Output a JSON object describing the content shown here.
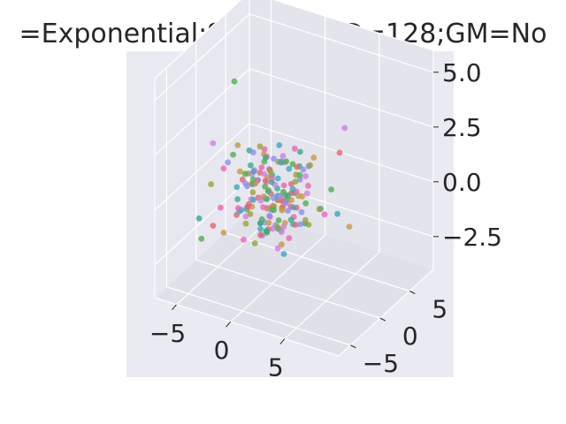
{
  "chart_data": {
    "type": "scatter",
    "projection": "3d",
    "title": "=Exponential;SD=128;ED=128;GM=No",
    "xlim": [
      -7,
      10
    ],
    "ylim": [
      -7,
      9
    ],
    "zlim": [
      -4,
      6
    ],
    "x_ticks": [
      "−5",
      "0",
      "5"
    ],
    "y_ticks": [
      "−5",
      "0",
      "5"
    ],
    "z_ticks": [
      "−2.5",
      "0.0",
      "2.5",
      "5.0"
    ],
    "grid": true,
    "legend": "none",
    "background": "#eaeaf2",
    "series": [
      {
        "color": "#e8646b",
        "points": [
          [
            -1.8,
            -0.6,
            -0.5
          ],
          [
            -0.5,
            -1.4,
            0.2
          ],
          [
            0.4,
            1.1,
            -0.7
          ],
          [
            -1.6,
            0.9,
            0.6
          ],
          [
            1.3,
            -0.5,
            0.1
          ],
          [
            -0.3,
            0.2,
            1.1
          ],
          [
            0.9,
            1.6,
            0.3
          ],
          [
            -1.2,
            -1.9,
            -0.2
          ],
          [
            0.1,
            -0.8,
            -1.3
          ],
          [
            1.9,
            0.7,
            -0.4
          ],
          [
            -0.8,
            1.3,
            -1.0
          ],
          [
            2.4,
            -1.1,
            0.8
          ],
          [
            -2.6,
            -0.2,
            0.4
          ],
          [
            0.6,
            2.1,
            -0.9
          ],
          [
            -4.8,
            2.8,
            -2.3
          ],
          [
            -3.8,
            -3.0,
            -1.2
          ],
          [
            3.6,
            -2.6,
            -0.1
          ],
          [
            5.0,
            2.3,
            2.2
          ],
          [
            -1.0,
            -0.1,
            -1.9
          ],
          [
            0.7,
            -2.4,
            1.4
          ],
          [
            1.5,
            1.5,
            1.2
          ],
          [
            -0.4,
            0.6,
            -0.1
          ]
        ]
      },
      {
        "color": "#c49a3f",
        "points": [
          [
            -1.2,
            0.8,
            -0.4
          ],
          [
            0.3,
            -1.1,
            0.6
          ],
          [
            1.1,
            0.2,
            -1.1
          ],
          [
            -0.6,
            -1.7,
            0.9
          ],
          [
            1.8,
            1.2,
            0.0
          ],
          [
            -1.9,
            0.1,
            -0.8
          ],
          [
            0.5,
            0.9,
            1.4
          ],
          [
            -0.2,
            -0.4,
            -0.5
          ],
          [
            2.3,
            -0.9,
            0.4
          ],
          [
            -1.4,
            1.8,
            0.2
          ],
          [
            0.8,
            -2.0,
            -0.6
          ],
          [
            -2.4,
            -1.0,
            1.0
          ],
          [
            1.6,
            2.2,
            -0.3
          ],
          [
            -0.9,
            0.3,
            1.7
          ],
          [
            5.3,
            3.4,
            -1.4
          ],
          [
            -3.2,
            -2.3,
            -1.6
          ],
          [
            2.9,
            -3.6,
            0.7
          ],
          [
            -4.2,
            1.9,
            1.2
          ],
          [
            1.0,
            -0.2,
            -2.0
          ],
          [
            3.1,
            1.4,
            1.9
          ],
          [
            -0.4,
            2.4,
            -1.2
          ]
        ]
      },
      {
        "color": "#9aa432",
        "points": [
          [
            0.6,
            0.4,
            -0.2
          ],
          [
            -1.5,
            -0.7,
            0.5
          ],
          [
            1.4,
            -1.6,
            -0.8
          ],
          [
            -0.3,
            1.5,
            -0.6
          ],
          [
            2.0,
            0.3,
            0.9
          ],
          [
            -2.1,
            0.6,
            -0.3
          ],
          [
            0.2,
            -0.6,
            1.3
          ],
          [
            -0.8,
            -2.2,
            -0.4
          ],
          [
            1.2,
            1.9,
            0.7
          ],
          [
            -1.7,
            -1.3,
            -1.2
          ],
          [
            2.6,
            0.9,
            -0.9
          ],
          [
            -0.5,
            2.0,
            1.0
          ],
          [
            0.9,
            -1.3,
            0.0
          ],
          [
            -2.8,
            1.2,
            0.3
          ],
          [
            4.4,
            -1.6,
            2.5
          ],
          [
            -4.1,
            -2.8,
            0.6
          ],
          [
            1.7,
            3.1,
            -1.8
          ],
          [
            -1.1,
            0.0,
            2.1
          ],
          [
            3.4,
            1.8,
            -0.5
          ],
          [
            -0.1,
            -2.7,
            -1.5
          ],
          [
            0.4,
            0.8,
            -1.7
          ]
        ]
      },
      {
        "color": "#4cb04c",
        "points": [
          [
            -0.7,
            0.1,
            0.3
          ],
          [
            0.8,
            -0.3,
            -0.9
          ],
          [
            -1.3,
            1.1,
            1.1
          ],
          [
            1.7,
            -0.8,
            0.5
          ],
          [
            -0.1,
            -1.5,
            -0.7
          ],
          [
            0.3,
            1.4,
            -0.1
          ],
          [
            -2.2,
            -0.5,
            0.8
          ],
          [
            1.0,
            0.6,
            1.6
          ],
          [
            -0.6,
            -2.1,
            1.2
          ],
          [
            2.2,
            1.7,
            -0.4
          ],
          [
            -1.6,
            2.1,
            -0.9
          ],
          [
            0.0,
            -0.9,
            -1.4
          ],
          [
            1.5,
            -2.4,
            0.2
          ],
          [
            -2.5,
            0.4,
            -1.1
          ],
          [
            -5.6,
            3.9,
            3.4
          ],
          [
            -4.6,
            -3.5,
            -1.8
          ],
          [
            3.9,
            2.9,
            0.2
          ],
          [
            -2.0,
            -2.9,
            2.3
          ],
          [
            2.8,
            -0.4,
            1.5
          ],
          [
            -0.9,
            0.8,
            -2.0
          ],
          [
            0.5,
            2.6,
            0.9
          ],
          [
            1.3,
            0.2,
            0.0
          ]
        ]
      },
      {
        "color": "#36ab8c",
        "points": [
          [
            0.1,
            -0.2,
            0.7
          ],
          [
            -1.1,
            0.9,
            -0.5
          ],
          [
            1.6,
            0.8,
            0.2
          ],
          [
            -0.4,
            -1.2,
            -1.0
          ],
          [
            0.7,
            -1.9,
            0.8
          ],
          [
            -1.8,
            -0.3,
            1.2
          ],
          [
            2.1,
            -0.6,
            -0.6
          ],
          [
            -0.9,
            1.7,
            0.4
          ],
          [
            0.4,
            0.3,
            -1.5
          ],
          [
            -2.3,
            -1.6,
            -0.1
          ],
          [
            1.3,
            2.3,
            1.0
          ],
          [
            -0.2,
            -0.7,
            1.9
          ],
          [
            2.5,
            1.0,
            -1.1
          ],
          [
            -1.4,
            0.6,
            -1.6
          ],
          [
            -5.8,
            -1.7,
            -1.5
          ],
          [
            3.2,
            -3.1,
            1.3
          ],
          [
            -3.5,
            2.6,
            0.9
          ],
          [
            0.9,
            -2.6,
            -0.8
          ],
          [
            1.9,
            1.3,
            2.0
          ],
          [
            -0.7,
            2.2,
            -0.3
          ]
        ]
      },
      {
        "color": "#39a7c6",
        "points": [
          [
            -0.3,
            0.5,
            -0.8
          ],
          [
            1.0,
            -0.9,
            0.4
          ],
          [
            -1.5,
            -0.4,
            -0.3
          ],
          [
            0.6,
            1.8,
            0.9
          ],
          [
            -0.8,
            -1.6,
            1.4
          ],
          [
            2.0,
            0.0,
            -0.2
          ],
          [
            -2.0,
            1.3,
            0.1
          ],
          [
            0.2,
            -2.3,
            -0.9
          ],
          [
            1.4,
            1.0,
            -1.3
          ],
          [
            -1.2,
            -0.9,
            0.6
          ],
          [
            2.7,
            -1.4,
            1.1
          ],
          [
            -0.6,
            2.5,
            -0.7
          ],
          [
            0.9,
            -0.1,
            1.7
          ],
          [
            -2.7,
            -0.2,
            -1.0
          ],
          [
            7.8,
            -3.2,
            1.2
          ],
          [
            -3.9,
            1.6,
            -1.7
          ],
          [
            3.3,
            2.2,
            -0.6
          ],
          [
            -1.6,
            -3.0,
            0.9
          ],
          [
            0.3,
            0.7,
            2.2
          ],
          [
            2.2,
            -2.0,
            -1.8
          ],
          [
            -0.1,
            1.2,
            0.5
          ]
        ]
      },
      {
        "color": "#8a8ff2",
        "points": [
          [
            0.4,
            -0.5,
            0.1
          ],
          [
            -0.9,
            1.2,
            0.8
          ],
          [
            1.2,
            0.5,
            -0.6
          ],
          [
            -1.7,
            -1.1,
            -0.5
          ],
          [
            0.0,
            1.6,
            1.2
          ],
          [
            1.9,
            -1.2,
            0.3
          ],
          [
            -0.5,
            -0.3,
            -1.2
          ],
          [
            -2.1,
            0.7,
            1.5
          ],
          [
            0.8,
            -1.9,
            -0.3
          ],
          [
            1.5,
            2.0,
            0.5
          ],
          [
            -1.3,
            -2.1,
            0.9
          ],
          [
            2.4,
            0.4,
            -1.0
          ],
          [
            -0.2,
            1.0,
            -1.6
          ],
          [
            0.6,
            -0.8,
            2.0
          ],
          [
            -3.6,
            2.4,
            -0.7
          ],
          [
            4.1,
            -2.2,
            2.4
          ],
          [
            -2.6,
            -2.7,
            1.8
          ],
          [
            1.1,
            3.0,
            -1.3
          ],
          [
            2.9,
            0.9,
            1.6
          ],
          [
            -1.0,
            0.2,
            -2.0
          ]
        ]
      },
      {
        "color": "#d17ee6",
        "points": [
          [
            -0.6,
            0.2,
            0.5
          ],
          [
            0.9,
            0.9,
            -0.4
          ],
          [
            -1.4,
            -0.8,
            1.0
          ],
          [
            1.3,
            -0.4,
            -1.1
          ],
          [
            -0.1,
            -1.7,
            0.2
          ],
          [
            0.5,
            1.3,
            1.3
          ],
          [
            -2.2,
            0.5,
            -0.6
          ],
          [
            1.8,
            -1.8,
            0.7
          ],
          [
            -0.8,
            2.0,
            -0.1
          ],
          [
            0.2,
            -0.2,
            -1.4
          ],
          [
            2.3,
            1.5,
            0.9
          ],
          [
            -1.6,
            -1.5,
            -0.8
          ],
          [
            0.7,
            0.6,
            1.8
          ],
          [
            -2.5,
            1.6,
            0.4
          ],
          [
            5.8,
            1.7,
            3.6
          ],
          [
            -4.4,
            -1.9,
            2.2
          ],
          [
            2.7,
            -3.3,
            -0.4
          ],
          [
            -1.9,
            2.7,
            -1.5
          ],
          [
            1.2,
            -1.2,
            -1.9
          ],
          [
            3.2,
            0.1,
            0.6
          ],
          [
            -0.4,
            -0.6,
            1.1
          ]
        ]
      },
      {
        "color": "#f062b7",
        "points": [
          [
            0.2,
            0.7,
            -0.3
          ],
          [
            -1.0,
            -0.6,
            0.7
          ],
          [
            1.5,
            -0.7,
            0.9
          ],
          [
            -0.7,
            1.4,
            -0.9
          ],
          [
            0.6,
            -1.4,
            -0.5
          ],
          [
            -1.9,
            0.2,
            0.2
          ],
          [
            1.1,
            1.7,
            -1.2
          ],
          [
            -0.4,
            -1.0,
            1.5
          ],
          [
            2.0,
            0.5,
            0.4
          ],
          [
            -1.5,
            1.9,
            1.1
          ],
          [
            0.4,
            -2.2,
            0.1
          ],
          [
            -2.4,
            -1.3,
            -0.6
          ],
          [
            1.7,
            -0.2,
            -1.6
          ],
          [
            -0.9,
            0.4,
            1.9
          ],
          [
            -4.9,
            0.8,
            0.3
          ],
          [
            3.5,
            2.5,
            -0.9
          ],
          [
            -3.0,
            -3.2,
            -0.2
          ],
          [
            4.0,
            -1.2,
            1.4
          ],
          [
            0.8,
            2.4,
            1.7
          ],
          [
            -1.3,
            -2.4,
            -1.6
          ],
          [
            0.0,
            0.0,
            0.8
          ]
        ]
      }
    ]
  }
}
